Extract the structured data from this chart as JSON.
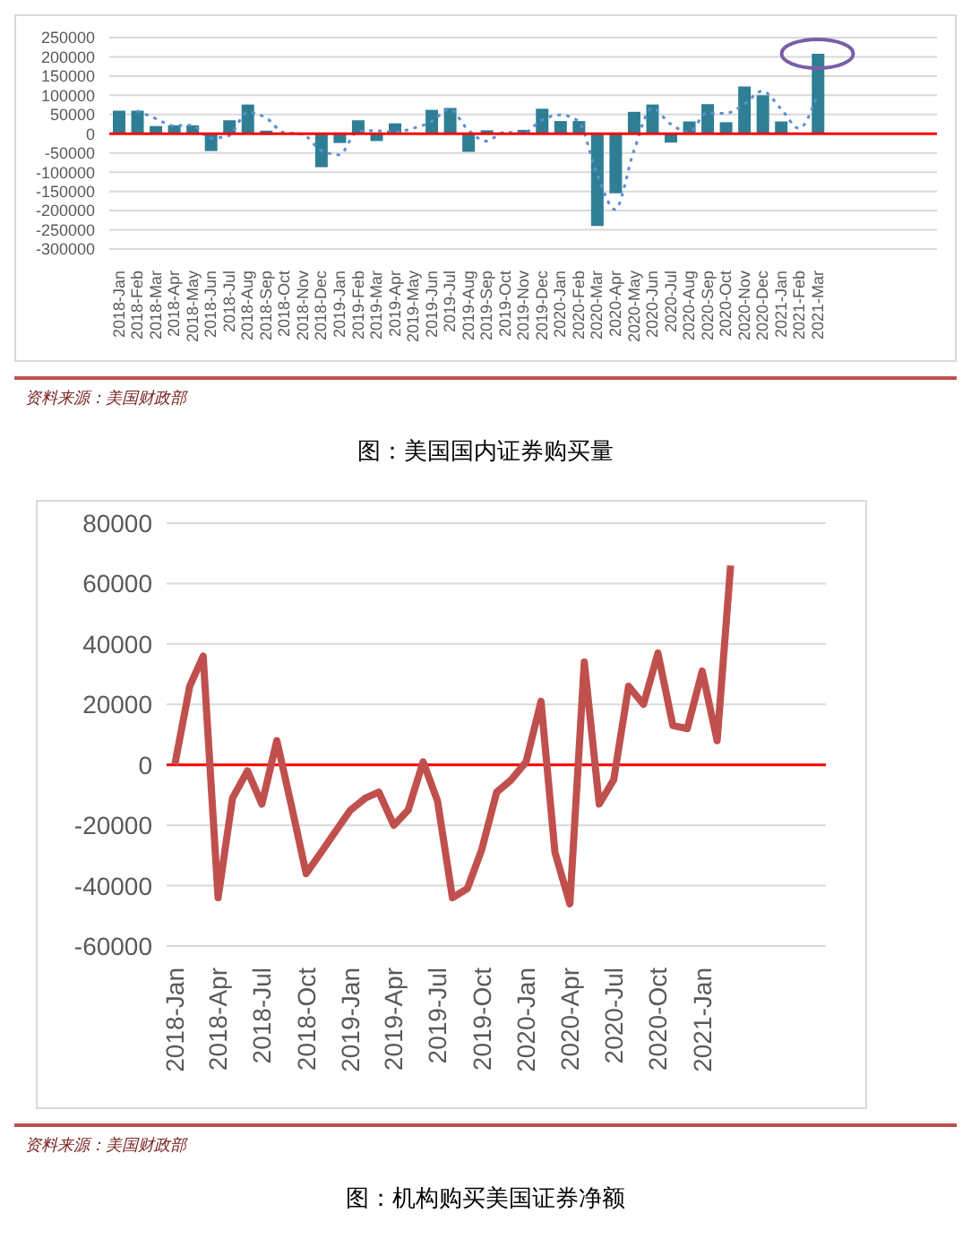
{
  "chart_data": [
    {
      "type": "bar",
      "title": "图：美国国内证券购买量",
      "annotations": [
        "资料来源：美国财政部"
      ],
      "categories": [
        "2018-Jan",
        "2018-Feb",
        "2018-Mar",
        "2018-Apr",
        "2018-May",
        "2018-Jun",
        "2018-Jul",
        "2018-Aug",
        "2018-Sep",
        "2018-Oct",
        "2018-Nov",
        "2018-Dec",
        "2019-Jan",
        "2019-Feb",
        "2019-Mar",
        "2019-Apr",
        "2019-May",
        "2019-Jun",
        "2019-Jul",
        "2019-Aug",
        "2019-Sep",
        "2019-Oct",
        "2019-Nov",
        "2019-Dec",
        "2020-Jan",
        "2020-Feb",
        "2020-Mar",
        "2020-Apr",
        "2020-May",
        "2020-Jun",
        "2020-Jul",
        "2020-Aug",
        "2020-Sep",
        "2020-Oct",
        "2020-Nov",
        "2020-Dec",
        "2021-Jan",
        "2021-Feb",
        "2021-Mar",
        null,
        null,
        null,
        null,
        null,
        null
      ],
      "series": [
        {
          "type": "bar",
          "color": "#2e7f94",
          "values": [
            60000,
            60000,
            20000,
            22000,
            22000,
            -45000,
            35000,
            76000,
            8000,
            null,
            null,
            -87000,
            -24000,
            35000,
            -19000,
            27000,
            null,
            62000,
            67000,
            -47000,
            9000,
            null,
            10000,
            65000,
            33000,
            33000,
            -240000,
            -155000,
            57000,
            76000,
            -23000,
            32000,
            77000,
            30000,
            123000,
            100000,
            32000,
            null,
            208000,
            null,
            null,
            null,
            null,
            null,
            null
          ]
        },
        {
          "type": "line",
          "color": "#5b8fd6",
          "line_style": "dotted",
          "values": [
            null,
            60000,
            40000,
            21000,
            22000,
            -12000,
            -5000,
            55000,
            42000,
            3000,
            -1000,
            -43000,
            -55000,
            6000,
            8000,
            4000,
            14000,
            31000,
            64000,
            10000,
            -19000,
            4000,
            2000,
            35000,
            49000,
            33000,
            -103000,
            -197000,
            -48000,
            66000,
            26000,
            4000,
            54000,
            53000,
            76000,
            111000,
            66000,
            14000,
            102000,
            null,
            null,
            null,
            null,
            null,
            null
          ]
        }
      ],
      "ylim": [
        -300000,
        250000
      ],
      "yticks": [
        -300000,
        -250000,
        -200000,
        -150000,
        -100000,
        -50000,
        0,
        50000,
        100000,
        150000,
        200000,
        250000
      ],
      "grid": "y",
      "ref_lines": [
        {
          "axis": "y",
          "value": 0,
          "color": "#ff0000"
        }
      ]
    },
    {
      "type": "line",
      "title": "图：机构购买美国证券净额",
      "annotations": [
        "资料来源：美国财政部"
      ],
      "x": [
        "2018-01",
        "2018-02",
        "2018-03",
        "2018-04",
        "2018-05",
        "2018-06",
        "2018-07",
        "2018-08",
        "2018-09",
        "2018-10",
        "2018-11",
        "2018-12",
        "2019-01",
        "2019-02",
        "2019-03",
        "2019-04",
        "2019-05",
        "2019-06",
        "2019-07",
        "2019-08",
        "2019-09",
        "2019-10",
        "2019-11",
        "2019-12",
        "2020-01",
        "2020-02",
        "2020-03",
        "2020-04",
        "2020-05",
        "2020-06",
        "2020-07",
        "2020-08",
        "2020-09",
        "2020-10",
        "2020-11",
        "2020-12",
        "2021-01",
        "2021-02",
        "2021-03"
      ],
      "values": [
        0,
        26000,
        36000,
        -44000,
        -11000,
        -2000,
        -13000,
        8000,
        -14000,
        -36000,
        -29000,
        -22000,
        -15000,
        -11000,
        -9000,
        -20000,
        -15000,
        1000,
        -12000,
        -44000,
        -41000,
        -28000,
        -9000,
        -5000,
        1000,
        21000,
        -29000,
        -46000,
        34000,
        -13000,
        -5000,
        26000,
        20000,
        37000,
        13000,
        12000,
        31000,
        8000,
        66000
      ],
      "color": "#c0504d",
      "marker": "none",
      "line_style": "solid",
      "xlim": [
        "2017-12-15",
        "2021-09-15"
      ],
      "xticks": [
        {
          "value": "2018-01",
          "label": "2018-Jan"
        },
        {
          "value": "2018-04",
          "label": "2018-Apr"
        },
        {
          "value": "2018-07",
          "label": "2018-Jul"
        },
        {
          "value": "2018-10",
          "label": "2018-Oct"
        },
        {
          "value": "2019-01",
          "label": "2019-Jan"
        },
        {
          "value": "2019-04",
          "label": "2019-Apr"
        },
        {
          "value": "2019-07",
          "label": "2019-Jul"
        },
        {
          "value": "2019-10",
          "label": "2019-Oct"
        },
        {
          "value": "2020-01",
          "label": "2020-Jan"
        },
        {
          "value": "2020-04",
          "label": "2020-Apr"
        },
        {
          "value": "2020-07",
          "label": "2020-Jul"
        },
        {
          "value": "2020-10",
          "label": "2020-Oct"
        },
        {
          "value": "2021-01",
          "label": "2021-Jan"
        }
      ],
      "ylim": [
        -60000,
        80000
      ],
      "yticks": [
        -60000,
        -40000,
        -20000,
        0,
        20000,
        40000,
        60000,
        80000
      ],
      "grid": "y",
      "ref_lines": [
        {
          "axis": "y",
          "value": 0,
          "color": "#ff0000"
        }
      ]
    }
  ]
}
